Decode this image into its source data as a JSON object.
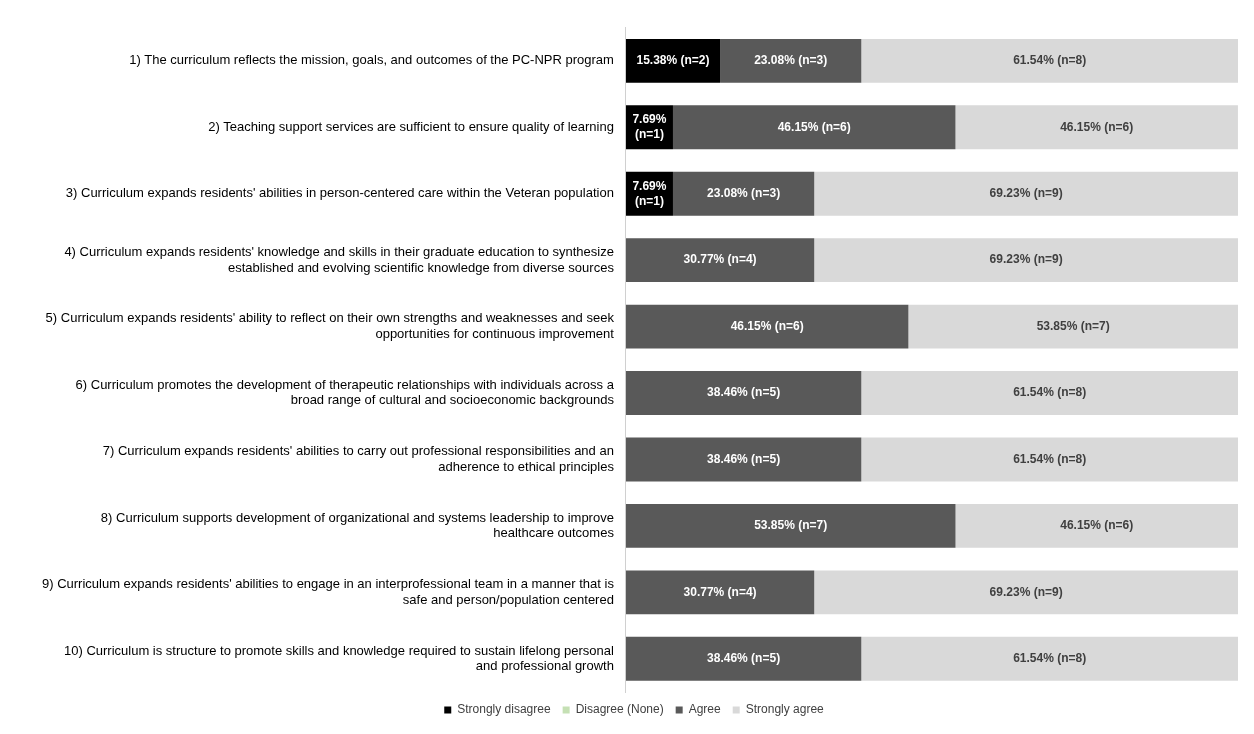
{
  "chart_data": {
    "type": "bar",
    "orientation": "horizontal",
    "stacked": true,
    "xlim": [
      0,
      100
    ],
    "tick_labels": "y",
    "legend": "bottom",
    "categories": [
      "1) The curriculum reflects the mission, goals, and outcomes of the PC-NPR program",
      "2) Teaching support services are sufficient to ensure quality of learning",
      "3) Curriculum expands residents' abilities in person-centered care within the Veteran population",
      "4) Curriculum expands residents' knowledge and skills in their graduate education to synthesize established and evolving scientific knowledge from diverse sources",
      "5) Curriculum expands residents' ability to reflect on their own strengths and weaknesses and seek opportunities for continuous improvement",
      "6) Curriculum promotes the development of therapeutic relationships with individuals across a broad range of cultural and socioeconomic backgrounds",
      "7) Curriculum expands residents' abilities to carry out professional responsibilities and an adherence to ethical principles",
      "8) Curriculum supports development of organizational and systems leadership to improve healthcare outcomes",
      "9) Curriculum expands residents' abilities to engage in an interprofessional team in a manner that is safe and person/population centered",
      "10) Curriculum is structure to promote skills and knowledge required to sustain lifelong personal and professional growth"
    ],
    "series": [
      {
        "name": "Strongly disagree",
        "color": "#000000",
        "values": [
          15.38,
          7.69,
          7.69,
          null,
          null,
          null,
          null,
          null,
          null,
          null
        ],
        "value_labels": [
          "15.38% (n=2)",
          "7.69% (n=1)",
          "7.69% (n=1)",
          null,
          null,
          null,
          null,
          null,
          null,
          null
        ]
      },
      {
        "name": "Disagree (None)",
        "color": "#c5e0b4",
        "values": [
          null,
          null,
          null,
          null,
          null,
          null,
          null,
          null,
          null,
          null
        ]
      },
      {
        "name": "Agree",
        "color": "#595959",
        "values": [
          23.08,
          46.15,
          23.08,
          30.77,
          46.15,
          38.46,
          38.46,
          53.85,
          30.77,
          38.46
        ],
        "value_labels": [
          "23.08% (n=3)",
          "46.15% (n=6)",
          "23.08% (n=3)",
          "30.77% (n=4)",
          "46.15% (n=6)",
          "38.46% (n=5)",
          "38.46% (n=5)",
          "53.85% (n=7)",
          "30.77% (n=4)",
          "38.46% (n=5)"
        ]
      },
      {
        "name": "Strongly agree",
        "color": "#d9d9d9",
        "values": [
          61.54,
          46.15,
          69.23,
          69.23,
          53.85,
          61.54,
          61.54,
          46.15,
          69.23,
          61.54
        ],
        "value_labels": [
          "61.54% (n=8)",
          "46.15% (n=6)",
          "69.23% (n=9)",
          "69.23% (n=9)",
          "53.85% (n=7)",
          "61.54% (n=8)",
          "61.54% (n=8)",
          "46.15% (n=6)",
          "69.23% (n=9)",
          "61.54% (n=8)"
        ]
      }
    ]
  }
}
